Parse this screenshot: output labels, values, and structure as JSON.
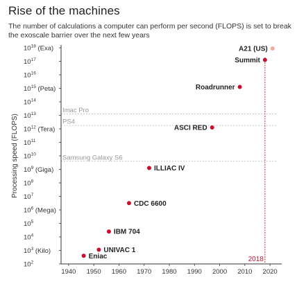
{
  "chart_data": {
    "type": "scatter",
    "title": "Rise of the machines",
    "subtitle": "The number of calculations a computer can perform per second (FLOPS) is set to break the exoscale barrier over the next few years",
    "ylabel": "Processing speed (FLOPS)",
    "xlabel": "",
    "xlim": [
      1937,
      2023
    ],
    "ylim": [
      2,
      18
    ],
    "y_scale": "log",
    "x_ticks": [
      1940,
      1950,
      1960,
      1970,
      1980,
      1990,
      2000,
      2010,
      2020
    ],
    "y_ticks": [
      {
        "exp": 18,
        "label": "10",
        "sup": "18",
        "suffix": " (Exa)"
      },
      {
        "exp": 17,
        "label": "10",
        "sup": "17",
        "suffix": ""
      },
      {
        "exp": 16,
        "label": "10",
        "sup": "16",
        "suffix": ""
      },
      {
        "exp": 15,
        "label": "10",
        "sup": "15",
        "suffix": " (Peta)"
      },
      {
        "exp": 14,
        "label": "10",
        "sup": "14",
        "suffix": ""
      },
      {
        "exp": 13,
        "label": "10",
        "sup": "13",
        "suffix": ""
      },
      {
        "exp": 12,
        "label": "10",
        "sup": "12",
        "suffix": " (Tera)"
      },
      {
        "exp": 11,
        "label": "10",
        "sup": "11",
        "suffix": ""
      },
      {
        "exp": 10,
        "label": "10",
        "sup": "10",
        "suffix": ""
      },
      {
        "exp": 9,
        "label": "10",
        "sup": "9",
        "suffix": " (Giga)"
      },
      {
        "exp": 8,
        "label": "10",
        "sup": "8",
        "suffix": ""
      },
      {
        "exp": 7,
        "label": "10",
        "sup": "7",
        "suffix": ""
      },
      {
        "exp": 6,
        "label": "10",
        "sup": "6",
        "suffix": " (Mega)"
      },
      {
        "exp": 5,
        "label": "10",
        "sup": "5",
        "suffix": ""
      },
      {
        "exp": 4,
        "label": "10",
        "sup": "4",
        "suffix": ""
      },
      {
        "exp": 3,
        "label": "10",
        "sup": "3",
        "suffix": " (Kilo)"
      },
      {
        "exp": 2,
        "label": "10",
        "sup": "2",
        "suffix": ""
      }
    ],
    "points": [
      {
        "name": "Eniac",
        "year": 1946,
        "flops_exp": 2.6,
        "color": "#c8102e",
        "label_side": "right"
      },
      {
        "name": "UNIVAC 1",
        "year": 1952,
        "flops_exp": 3.05,
        "color": "#c8102e",
        "label_side": "right"
      },
      {
        "name": "IBM 704",
        "year": 1956,
        "flops_exp": 4.4,
        "color": "#c8102e",
        "label_side": "right"
      },
      {
        "name": "CDC 6600",
        "year": 1964,
        "flops_exp": 6.5,
        "color": "#c8102e",
        "label_side": "right"
      },
      {
        "name": "ILLIAC IV",
        "year": 1972,
        "flops_exp": 9.1,
        "color": "#c8102e",
        "label_side": "right"
      },
      {
        "name": "ASCI RED",
        "year": 1997,
        "flops_exp": 12.1,
        "color": "#c8102e",
        "label_side": "left"
      },
      {
        "name": "Roadrunner",
        "year": 2008,
        "flops_exp": 15.1,
        "color": "#c8102e",
        "label_side": "left"
      },
      {
        "name": "Summit",
        "year": 2018,
        "flops_exp": 17.1,
        "color": "#c8102e",
        "label_side": "left"
      },
      {
        "name": "A21 (US)",
        "year": 2021,
        "flops_exp": 17.95,
        "color": "#f4a99b",
        "label_side": "left"
      }
    ],
    "reference_lines": [
      {
        "name": "Imac Pro",
        "flops_exp": 13.1
      },
      {
        "name": "PS4",
        "flops_exp": 12.25
      },
      {
        "name": "Samsung Galaxy S6",
        "flops_exp": 9.6
      }
    ],
    "marker_year": {
      "year": 2018,
      "label": "2018",
      "color": "#c8102e"
    },
    "grid": false
  }
}
